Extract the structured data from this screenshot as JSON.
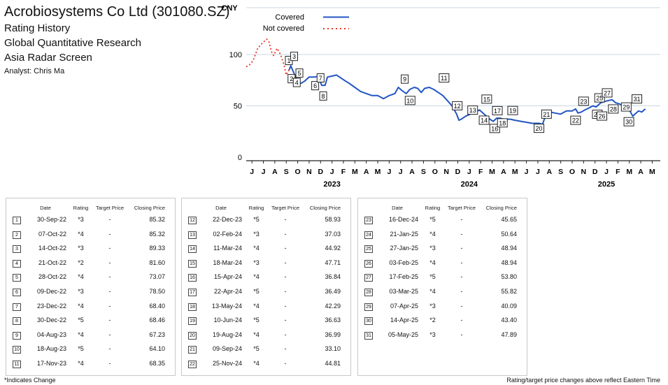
{
  "header": {
    "company": "Acrobiosystems Co Ltd (301080.SZ)",
    "line1": "Rating History",
    "line2": "Global Quantitative Research",
    "line3": "Asia Radar Screen",
    "analyst": "Analyst: Chris Ma"
  },
  "colors": {
    "covered": "#2255c4",
    "not_covered": "#e8352a",
    "grid": "#c9d6e0",
    "axis": "#222222"
  },
  "chart_data": {
    "type": "line",
    "ylabel": "CNY",
    "ylim": [
      0,
      150
    ],
    "yticks": [
      0,
      50,
      100
    ],
    "grid": "horizontal",
    "legend_position": "top-center",
    "x_month_labels": [
      "J",
      "J",
      "A",
      "S",
      "O",
      "N",
      "D",
      "J",
      "F",
      "M",
      "A",
      "M",
      "J",
      "J",
      "A",
      "S",
      "O",
      "N",
      "D",
      "J",
      "F",
      "M",
      "A",
      "M",
      "J",
      "J",
      "A",
      "S",
      "O",
      "N",
      "D",
      "J",
      "F",
      "M",
      "A",
      "M"
    ],
    "x_year_labels": [
      {
        "label": "2023",
        "month_index": 7
      },
      {
        "label": "2024",
        "month_index": 19
      },
      {
        "label": "2025",
        "month_index": 31
      }
    ],
    "series": [
      {
        "name": "Not covered",
        "style": "dotted",
        "color": "#e8352a",
        "points": [
          [
            0.0,
            88
          ],
          [
            0.3,
            90
          ],
          [
            0.6,
            94
          ],
          [
            1.0,
            106
          ],
          [
            1.4,
            111
          ],
          [
            1.8,
            115
          ],
          [
            2.0,
            112
          ],
          [
            2.2,
            103
          ],
          [
            2.4,
            99
          ],
          [
            2.7,
            106
          ],
          [
            3.0,
            100
          ],
          [
            3.3,
            90
          ],
          [
            3.5,
            80
          ],
          [
            3.75,
            85
          ]
        ]
      },
      {
        "name": "Covered",
        "style": "solid",
        "color": "#2255c4",
        "points": [
          [
            3.75,
            85
          ],
          [
            3.9,
            89
          ],
          [
            4.05,
            85
          ],
          [
            4.2,
            81
          ],
          [
            4.5,
            74
          ],
          [
            4.8,
            72
          ],
          [
            5.1,
            74
          ],
          [
            5.5,
            78
          ],
          [
            6.0,
            78
          ],
          [
            6.3,
            79
          ],
          [
            6.6,
            70
          ],
          [
            6.9,
            70
          ],
          [
            7.1,
            78
          ],
          [
            7.5,
            79
          ],
          [
            7.9,
            80
          ],
          [
            8.3,
            77
          ],
          [
            8.7,
            74
          ],
          [
            9.0,
            72
          ],
          [
            9.5,
            68
          ],
          [
            10.0,
            64
          ],
          [
            10.5,
            62
          ],
          [
            11.0,
            60
          ],
          [
            11.5,
            60
          ],
          [
            12.0,
            57
          ],
          [
            12.5,
            60
          ],
          [
            13.0,
            62
          ],
          [
            13.3,
            68
          ],
          [
            13.6,
            65
          ],
          [
            14.0,
            62
          ],
          [
            14.3,
            66
          ],
          [
            14.7,
            68
          ],
          [
            15.0,
            67
          ],
          [
            15.3,
            63
          ],
          [
            15.6,
            67
          ],
          [
            16.0,
            68
          ],
          [
            16.4,
            66
          ],
          [
            16.8,
            63
          ],
          [
            17.2,
            60
          ],
          [
            17.6,
            55
          ],
          [
            18.0,
            50
          ],
          [
            18.4,
            42
          ],
          [
            18.6,
            36
          ],
          [
            18.8,
            37
          ],
          [
            19.2,
            40
          ],
          [
            19.6,
            42
          ],
          [
            20.0,
            44
          ],
          [
            20.4,
            46
          ],
          [
            20.7,
            43
          ],
          [
            21.0,
            40
          ],
          [
            21.3,
            37
          ],
          [
            21.6,
            35
          ],
          [
            21.9,
            38
          ],
          [
            22.2,
            38
          ],
          [
            22.5,
            37
          ],
          [
            22.8,
            37
          ],
          [
            23.1,
            37
          ],
          [
            23.5,
            36
          ],
          [
            24.0,
            35
          ],
          [
            24.5,
            34
          ],
          [
            25.0,
            33
          ],
          [
            25.3,
            33
          ],
          [
            25.6,
            33
          ],
          [
            25.9,
            32
          ],
          [
            26.2,
            41
          ],
          [
            26.6,
            44
          ],
          [
            27.0,
            43
          ],
          [
            27.5,
            42
          ],
          [
            28.0,
            45
          ],
          [
            28.5,
            45
          ],
          [
            28.8,
            47
          ],
          [
            29.0,
            43
          ],
          [
            29.3,
            44
          ],
          [
            29.6,
            46
          ],
          [
            30.0,
            48
          ],
          [
            30.3,
            50
          ],
          [
            30.6,
            49
          ],
          [
            30.8,
            51
          ],
          [
            31.0,
            53
          ],
          [
            31.3,
            54
          ],
          [
            31.6,
            55
          ],
          [
            32.0,
            56
          ],
          [
            32.3,
            53
          ],
          [
            32.6,
            52
          ],
          [
            33.0,
            50
          ],
          [
            33.3,
            49
          ],
          [
            33.6,
            44
          ],
          [
            33.8,
            40
          ],
          [
            34.0,
            42
          ],
          [
            34.3,
            45
          ],
          [
            34.6,
            44
          ],
          [
            34.9,
            47
          ]
        ]
      }
    ],
    "markers": [
      {
        "label": "1",
        "month": 3.73,
        "price": 85.32
      },
      {
        "label": "2",
        "month": 3.96,
        "price": 85.32
      },
      {
        "label": "3",
        "month": 4.19,
        "price": 89.33
      },
      {
        "label": "4",
        "month": 4.42,
        "price": 81.6
      },
      {
        "label": "5",
        "month": 4.65,
        "price": 73.07
      },
      {
        "label": "6",
        "month": 6.03,
        "price": 78.5
      },
      {
        "label": "7",
        "month": 6.5,
        "price": 68.4
      },
      {
        "label": "8",
        "month": 6.73,
        "price": 68.46
      },
      {
        "label": "9",
        "month": 13.86,
        "price": 67.23
      },
      {
        "label": "10",
        "month": 14.33,
        "price": 64.1
      },
      {
        "label": "11",
        "month": 17.3,
        "price": 68.35
      },
      {
        "label": "12",
        "month": 18.45,
        "price": 58.93
      },
      {
        "label": "13",
        "month": 19.8,
        "price": 37.03
      },
      {
        "label": "14",
        "month": 20.8,
        "price": 44.92
      },
      {
        "label": "15",
        "month": 21.03,
        "price": 47.71
      },
      {
        "label": "16",
        "month": 21.73,
        "price": 36.84
      },
      {
        "label": "17",
        "month": 21.96,
        "price": 36.49
      },
      {
        "label": "18",
        "month": 22.4,
        "price": 42.29
      },
      {
        "label": "19",
        "month": 23.3,
        "price": 36.63
      },
      {
        "label": "20",
        "month": 25.6,
        "price": 36.99
      },
      {
        "label": "21",
        "month": 26.26,
        "price": 33.1
      },
      {
        "label": "22",
        "month": 28.8,
        "price": 44.81
      },
      {
        "label": "23",
        "month": 29.5,
        "price": 45.65
      },
      {
        "label": "24",
        "month": 30.7,
        "price": 50.64
      },
      {
        "label": "25",
        "month": 30.9,
        "price": 48.94
      },
      {
        "label": "26",
        "month": 31.1,
        "price": 48.94
      },
      {
        "label": "27",
        "month": 31.56,
        "price": 53.8
      },
      {
        "label": "28",
        "month": 32.1,
        "price": 55.82
      },
      {
        "label": "29",
        "month": 33.23,
        "price": 40.09
      },
      {
        "label": "30",
        "month": 33.46,
        "price": 43.4
      },
      {
        "label": "31",
        "month": 34.16,
        "price": 47.89
      }
    ]
  },
  "table": {
    "headers": {
      "date": "Date",
      "rating": "Rating",
      "target": "Target Price",
      "close": "Closing Price"
    },
    "columns": [
      [
        {
          "n": "1",
          "date": "30-Sep-22",
          "rating": "*3",
          "target": "-",
          "close": "85.32"
        },
        {
          "n": "2",
          "date": "07-Oct-22",
          "rating": "*4",
          "target": "-",
          "close": "85.32"
        },
        {
          "n": "3",
          "date": "14-Oct-22",
          "rating": "*3",
          "target": "-",
          "close": "89.33"
        },
        {
          "n": "4",
          "date": "21-Oct-22",
          "rating": "*2",
          "target": "-",
          "close": "81.60"
        },
        {
          "n": "5",
          "date": "28-Oct-22",
          "rating": "*4",
          "target": "-",
          "close": "73.07"
        },
        {
          "n": "6",
          "date": "09-Dec-22",
          "rating": "*3",
          "target": "-",
          "close": "78.50"
        },
        {
          "n": "7",
          "date": "23-Dec-22",
          "rating": "*4",
          "target": "-",
          "close": "68.40"
        },
        {
          "n": "8",
          "date": "30-Dec-22",
          "rating": "*5",
          "target": "-",
          "close": "68.46"
        },
        {
          "n": "9",
          "date": "04-Aug-23",
          "rating": "*4",
          "target": "-",
          "close": "67.23"
        },
        {
          "n": "10",
          "date": "18-Aug-23",
          "rating": "*5",
          "target": "-",
          "close": "64.10"
        },
        {
          "n": "11",
          "date": "17-Nov-23",
          "rating": "*4",
          "target": "-",
          "close": "68.35"
        }
      ],
      [
        {
          "n": "12",
          "date": "22-Dec-23",
          "rating": "*5",
          "target": "-",
          "close": "58.93"
        },
        {
          "n": "13",
          "date": "02-Feb-24",
          "rating": "*3",
          "target": "-",
          "close": "37.03"
        },
        {
          "n": "14",
          "date": "11-Mar-24",
          "rating": "*4",
          "target": "-",
          "close": "44.92"
        },
        {
          "n": "15",
          "date": "18-Mar-24",
          "rating": "*3",
          "target": "-",
          "close": "47.71"
        },
        {
          "n": "16",
          "date": "15-Apr-24",
          "rating": "*4",
          "target": "-",
          "close": "36.84"
        },
        {
          "n": "17",
          "date": "22-Apr-24",
          "rating": "*5",
          "target": "-",
          "close": "36.49"
        },
        {
          "n": "18",
          "date": "13-May-24",
          "rating": "*4",
          "target": "-",
          "close": "42.29"
        },
        {
          "n": "19",
          "date": "10-Jun-24",
          "rating": "*5",
          "target": "-",
          "close": "36.63"
        },
        {
          "n": "20",
          "date": "19-Aug-24",
          "rating": "*4",
          "target": "-",
          "close": "36.99"
        },
        {
          "n": "21",
          "date": "09-Sep-24",
          "rating": "*5",
          "target": "-",
          "close": "33.10"
        },
        {
          "n": "22",
          "date": "25-Nov-24",
          "rating": "*4",
          "target": "-",
          "close": "44.81"
        }
      ],
      [
        {
          "n": "23",
          "date": "16-Dec-24",
          "rating": "*5",
          "target": "-",
          "close": "45.65"
        },
        {
          "n": "24",
          "date": "21-Jan-25",
          "rating": "*4",
          "target": "-",
          "close": "50.64"
        },
        {
          "n": "25",
          "date": "27-Jan-25",
          "rating": "*3",
          "target": "-",
          "close": "48.94"
        },
        {
          "n": "26",
          "date": "03-Feb-25",
          "rating": "*4",
          "target": "-",
          "close": "48.94"
        },
        {
          "n": "27",
          "date": "17-Feb-25",
          "rating": "*5",
          "target": "-",
          "close": "53.80"
        },
        {
          "n": "28",
          "date": "03-Mar-25",
          "rating": "*4",
          "target": "-",
          "close": "55.82"
        },
        {
          "n": "29",
          "date": "07-Apr-25",
          "rating": "*3",
          "target": "-",
          "close": "40.09"
        },
        {
          "n": "30",
          "date": "14-Apr-25",
          "rating": "*2",
          "target": "-",
          "close": "43.40"
        },
        {
          "n": "31",
          "date": "05-May-25",
          "rating": "*3",
          "target": "-",
          "close": "47.89"
        }
      ]
    ]
  },
  "footer": {
    "left": "*Indicates Change",
    "right": "Rating/target price changes above reflect Eastern Time"
  }
}
